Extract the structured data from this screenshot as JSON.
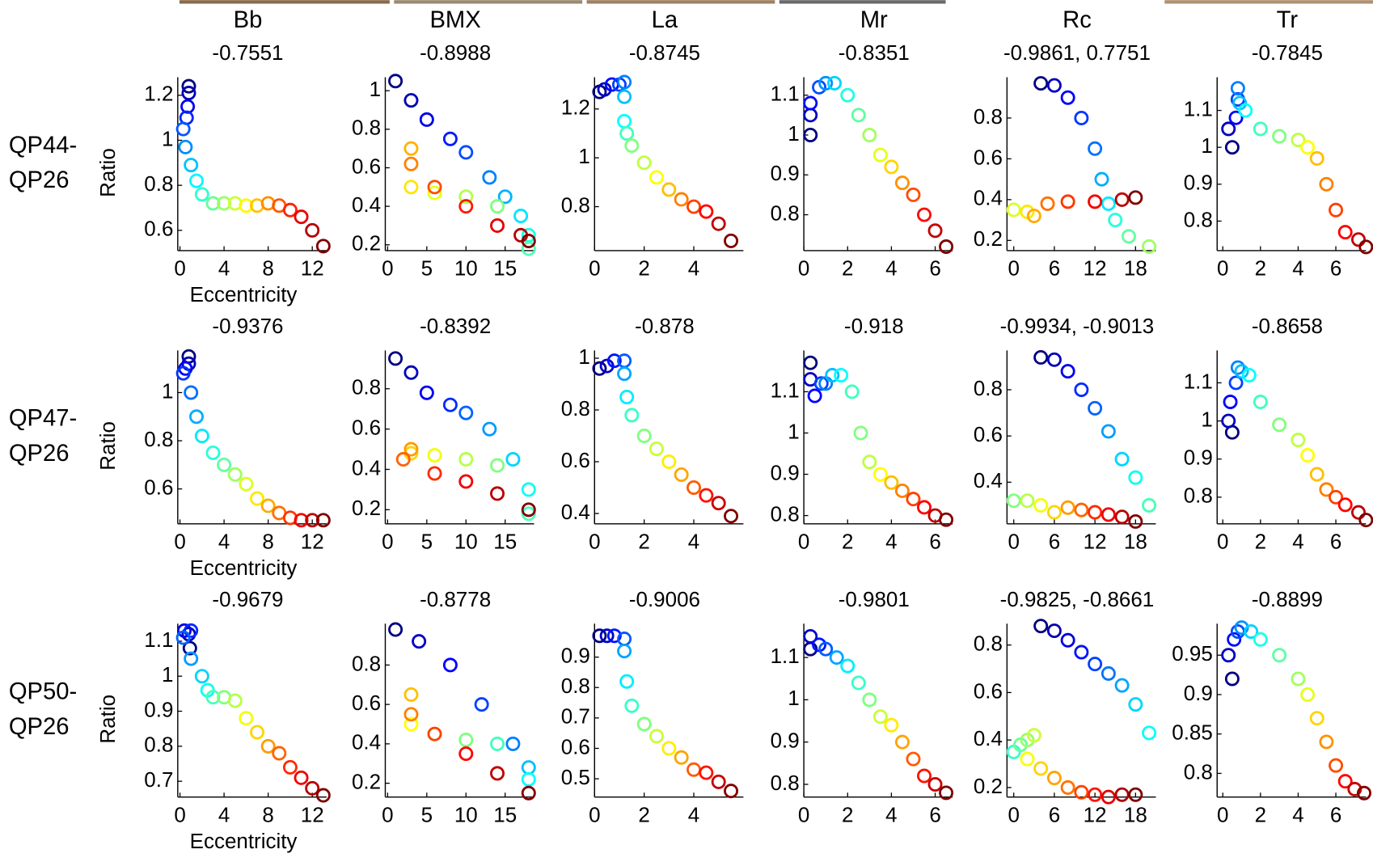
{
  "column_headers": [
    "Bb",
    "BMX",
    "La",
    "Mr",
    "Rc",
    "Tr"
  ],
  "row_labels": [
    [
      "QP44-",
      "QP26"
    ],
    [
      "QP47-",
      "QP26"
    ],
    [
      "QP50-",
      "QP26"
    ]
  ],
  "axis_labels": {
    "x": "Eccentricity",
    "y": "Ratio"
  },
  "colormap": "jet",
  "chart_data": [
    {
      "type": "scatter",
      "title": "-0.7551",
      "x": [
        0.8,
        0.8,
        0.7,
        0.6,
        0.3,
        0.5,
        1,
        1.5,
        2,
        3,
        4,
        5,
        6,
        7,
        8,
        9,
        10,
        11,
        12,
        13
      ],
      "y": [
        1.24,
        1.21,
        1.15,
        1.1,
        1.05,
        0.97,
        0.89,
        0.82,
        0.76,
        0.72,
        0.72,
        0.72,
        0.71,
        0.71,
        0.72,
        0.71,
        0.69,
        0.66,
        0.6,
        0.53
      ],
      "xlim": [
        -0.2,
        13.3
      ],
      "ylim": [
        0.51,
        1.28
      ],
      "xticks": [
        0,
        4,
        8,
        12
      ],
      "yticks": [
        0.6,
        0.8,
        1,
        1.2
      ]
    },
    {
      "type": "scatter",
      "title": "-0.8988",
      "x": [
        1,
        3,
        5,
        8,
        10,
        13,
        15,
        17,
        18,
        18,
        14,
        10,
        6,
        3,
        3,
        3,
        6,
        10,
        14,
        17,
        18
      ],
      "y": [
        1.05,
        0.95,
        0.85,
        0.75,
        0.68,
        0.55,
        0.45,
        0.35,
        0.25,
        0.18,
        0.4,
        0.45,
        0.47,
        0.5,
        0.7,
        0.62,
        0.5,
        0.4,
        0.3,
        0.25,
        0.22
      ],
      "xlim": [
        -0.3,
        18.7
      ],
      "ylim": [
        0.17,
        1.07
      ],
      "xticks": [
        0,
        5,
        10,
        15
      ],
      "yticks": [
        0.2,
        0.4,
        0.6,
        0.8,
        1
      ]
    },
    {
      "type": "scatter",
      "title": "-0.8745",
      "x": [
        0.2,
        0.4,
        0.7,
        1,
        1.2,
        1.2,
        1.2,
        1.3,
        1.5,
        2,
        2.5,
        3,
        3.5,
        4,
        4.5,
        5,
        5.5
      ],
      "y": [
        1.27,
        1.28,
        1.3,
        1.3,
        1.31,
        1.25,
        1.15,
        1.1,
        1.05,
        0.98,
        0.92,
        0.87,
        0.83,
        0.8,
        0.78,
        0.73,
        0.66
      ],
      "xlim": [
        0,
        6
      ],
      "ylim": [
        0.62,
        1.33
      ],
      "xticks": [
        0,
        2,
        4
      ],
      "yticks": [
        0.8,
        1,
        1.2
      ]
    },
    {
      "type": "scatter",
      "title": "-0.8351",
      "x": [
        0.3,
        0.3,
        0.3,
        0.7,
        1,
        1.4,
        2,
        2.5,
        3,
        3.5,
        4,
        4.5,
        5,
        5.5,
        6,
        6.5
      ],
      "y": [
        1.0,
        1.05,
        1.08,
        1.12,
        1.13,
        1.13,
        1.1,
        1.05,
        1.0,
        0.95,
        0.92,
        0.88,
        0.85,
        0.8,
        0.76,
        0.72
      ],
      "xlim": [
        0,
        6.8
      ],
      "ylim": [
        0.71,
        1.145
      ],
      "xticks": [
        0,
        2,
        4,
        6
      ],
      "yticks": [
        0.8,
        0.9,
        1,
        1.1
      ]
    },
    {
      "type": "scatter",
      "title": "-0.9861, 0.7751",
      "x": [
        4,
        6,
        8,
        10,
        12,
        13,
        14,
        15,
        17,
        20,
        0,
        2,
        3,
        5,
        8,
        12,
        16,
        18
      ],
      "y": [
        0.97,
        0.96,
        0.9,
        0.8,
        0.65,
        0.5,
        0.38,
        0.3,
        0.22,
        0.17,
        0.35,
        0.34,
        0.32,
        0.38,
        0.39,
        0.39,
        0.4,
        0.41
      ],
      "xlim": [
        -1,
        21
      ],
      "ylim": [
        0.15,
        1.0
      ],
      "xticks": [
        0,
        6,
        12,
        18
      ],
      "yticks": [
        0.2,
        0.4,
        0.6,
        0.8
      ]
    },
    {
      "type": "scatter",
      "title": "-0.7845",
      "x": [
        0.5,
        0.3,
        0.7,
        0.8,
        0.8,
        0.9,
        1.2,
        2,
        3,
        4,
        4.5,
        5,
        5.5,
        6,
        6.5,
        7.2,
        7.6
      ],
      "y": [
        1.0,
        1.05,
        1.08,
        1.13,
        1.16,
        1.12,
        1.1,
        1.05,
        1.03,
        1.02,
        1.0,
        0.97,
        0.9,
        0.83,
        0.77,
        0.75,
        0.73
      ],
      "xlim": [
        -0.3,
        7.6
      ],
      "ylim": [
        0.72,
        1.19
      ],
      "xticks": [
        0,
        2,
        4,
        6
      ],
      "yticks": [
        0.8,
        0.9,
        1,
        1.1
      ]
    },
    {
      "type": "scatter",
      "title": "-0.9376",
      "x": [
        0.8,
        0.8,
        0.5,
        0.3,
        1,
        1.5,
        2,
        3,
        4,
        5,
        6,
        7,
        8,
        9,
        10,
        11,
        12,
        13
      ],
      "y": [
        1.15,
        1.12,
        1.1,
        1.08,
        1.0,
        0.9,
        0.82,
        0.75,
        0.7,
        0.66,
        0.62,
        0.56,
        0.53,
        0.5,
        0.48,
        0.47,
        0.47,
        0.47
      ],
      "xlim": [
        -0.2,
        13.3
      ],
      "ylim": [
        0.455,
        1.175
      ],
      "xticks": [
        0,
        4,
        8,
        12
      ],
      "yticks": [
        0.6,
        0.8,
        1
      ]
    },
    {
      "type": "scatter",
      "title": "-0.8392",
      "x": [
        1,
        3,
        5,
        8,
        10,
        13,
        16,
        18,
        18,
        14,
        10,
        6,
        3,
        3,
        2,
        6,
        10,
        14,
        18
      ],
      "y": [
        0.95,
        0.88,
        0.78,
        0.72,
        0.68,
        0.6,
        0.45,
        0.3,
        0.18,
        0.42,
        0.45,
        0.47,
        0.48,
        0.5,
        0.45,
        0.38,
        0.34,
        0.28,
        0.2
      ],
      "xlim": [
        -0.3,
        18.7
      ],
      "ylim": [
        0.13,
        0.99
      ],
      "xticks": [
        0,
        5,
        10,
        15
      ],
      "yticks": [
        0.2,
        0.4,
        0.6,
        0.8
      ]
    },
    {
      "type": "scatter",
      "title": "-0.878",
      "x": [
        0.2,
        0.5,
        0.8,
        1.2,
        1.2,
        1.3,
        1.5,
        2,
        2.5,
        3,
        3.5,
        4,
        4.5,
        5,
        5.5
      ],
      "y": [
        0.96,
        0.97,
        0.99,
        0.99,
        0.94,
        0.85,
        0.78,
        0.7,
        0.65,
        0.6,
        0.55,
        0.5,
        0.47,
        0.44,
        0.39
      ],
      "xlim": [
        0,
        6
      ],
      "ylim": [
        0.36,
        1.03
      ],
      "xticks": [
        0,
        2,
        4
      ],
      "yticks": [
        0.4,
        0.6,
        0.8,
        1
      ]
    },
    {
      "type": "scatter",
      "title": "-0.918",
      "x": [
        0.3,
        0.3,
        0.5,
        0.8,
        1,
        1.3,
        1.7,
        2.2,
        2.6,
        3,
        3.5,
        4,
        4.5,
        5,
        5.5,
        6,
        6.5
      ],
      "y": [
        1.17,
        1.13,
        1.09,
        1.12,
        1.12,
        1.14,
        1.14,
        1.1,
        1.0,
        0.93,
        0.9,
        0.88,
        0.86,
        0.84,
        0.82,
        0.8,
        0.79
      ],
      "xlim": [
        0,
        6.8
      ],
      "ylim": [
        0.78,
        1.2
      ],
      "xticks": [
        0,
        2,
        4,
        6
      ],
      "yticks": [
        0.8,
        0.9,
        1,
        1.1
      ]
    },
    {
      "type": "scatter",
      "title": "-0.9934, -0.9013",
      "x": [
        4,
        6,
        8,
        10,
        12,
        14,
        16,
        18,
        20,
        0,
        2,
        4,
        6,
        8,
        10,
        12,
        14,
        16,
        18
      ],
      "y": [
        0.94,
        0.93,
        0.88,
        0.8,
        0.72,
        0.62,
        0.5,
        0.42,
        0.3,
        0.32,
        0.32,
        0.3,
        0.27,
        0.29,
        0.28,
        0.27,
        0.26,
        0.25,
        0.23
      ],
      "xlim": [
        -1,
        21
      ],
      "ylim": [
        0.22,
        0.97
      ],
      "xticks": [
        0,
        6,
        12,
        18
      ],
      "yticks": [
        0.4,
        0.6,
        0.8
      ]
    },
    {
      "type": "scatter",
      "title": "-0.8658",
      "x": [
        0.5,
        0.3,
        0.4,
        0.7,
        0.8,
        1,
        1.4,
        2,
        3,
        4,
        4.5,
        5,
        5.5,
        6,
        6.5,
        7.2,
        7.6
      ],
      "y": [
        0.97,
        1.0,
        1.05,
        1.1,
        1.14,
        1.13,
        1.12,
        1.05,
        0.99,
        0.95,
        0.91,
        0.86,
        0.82,
        0.8,
        0.78,
        0.76,
        0.74
      ],
      "xlim": [
        -0.3,
        7.6
      ],
      "ylim": [
        0.73,
        1.185
      ],
      "xticks": [
        0,
        2,
        4,
        6
      ],
      "yticks": [
        0.8,
        0.9,
        1,
        1.1
      ]
    },
    {
      "type": "scatter",
      "title": "-0.9679",
      "x": [
        0.9,
        0.8,
        0.4,
        1,
        0.3,
        1,
        2,
        2.5,
        3,
        4,
        5,
        6,
        7,
        8,
        9,
        10,
        11,
        12,
        13
      ],
      "y": [
        1.08,
        1.12,
        1.13,
        1.13,
        1.11,
        1.05,
        1.0,
        0.96,
        0.94,
        0.94,
        0.93,
        0.88,
        0.84,
        0.8,
        0.78,
        0.74,
        0.71,
        0.68,
        0.66
      ],
      "xlim": [
        -0.2,
        13.3
      ],
      "ylim": [
        0.655,
        1.15
      ],
      "xticks": [
        0,
        4,
        8,
        12
      ],
      "yticks": [
        0.7,
        0.8,
        0.9,
        1,
        1.1
      ]
    },
    {
      "type": "scatter",
      "title": "-0.8778",
      "x": [
        1,
        4,
        8,
        12,
        16,
        18,
        18,
        14,
        10,
        6,
        3,
        3,
        3,
        6,
        10,
        14,
        18
      ],
      "y": [
        0.98,
        0.92,
        0.8,
        0.6,
        0.4,
        0.28,
        0.22,
        0.4,
        0.42,
        0.45,
        0.5,
        0.65,
        0.55,
        0.45,
        0.35,
        0.25,
        0.15
      ],
      "xlim": [
        -0.3,
        18.7
      ],
      "ylim": [
        0.13,
        1.01
      ],
      "xticks": [
        0,
        5,
        10,
        15
      ],
      "yticks": [
        0.2,
        0.4,
        0.6,
        0.8
      ]
    },
    {
      "type": "scatter",
      "title": "-0.9006",
      "x": [
        0.2,
        0.5,
        0.8,
        1.2,
        1.2,
        1.3,
        1.5,
        2,
        2.5,
        3,
        3.5,
        4,
        4.5,
        5,
        5.5
      ],
      "y": [
        0.97,
        0.97,
        0.97,
        0.96,
        0.92,
        0.82,
        0.74,
        0.68,
        0.64,
        0.6,
        0.57,
        0.53,
        0.52,
        0.49,
        0.46
      ],
      "xlim": [
        0,
        6
      ],
      "ylim": [
        0.44,
        1.01
      ],
      "xticks": [
        0,
        2,
        4
      ],
      "yticks": [
        0.5,
        0.6,
        0.7,
        0.8,
        0.9
      ]
    },
    {
      "type": "scatter",
      "title": "-0.9801",
      "x": [
        0.3,
        0.3,
        0.7,
        1,
        1.5,
        2,
        2.5,
        3,
        3.5,
        4,
        4.5,
        5,
        5.5,
        6,
        6.5
      ],
      "y": [
        1.12,
        1.15,
        1.13,
        1.12,
        1.1,
        1.08,
        1.04,
        1.0,
        0.96,
        0.94,
        0.9,
        0.86,
        0.82,
        0.8,
        0.78
      ],
      "xlim": [
        0,
        6.8
      ],
      "ylim": [
        0.77,
        1.18
      ],
      "xticks": [
        0,
        2,
        4,
        6
      ],
      "yticks": [
        0.8,
        0.9,
        1,
        1.1
      ]
    },
    {
      "type": "scatter",
      "title": "-0.9825, -0.8661",
      "x": [
        4,
        6,
        8,
        10,
        12,
        14,
        16,
        18,
        20,
        0,
        1,
        2,
        3,
        2,
        4,
        6,
        8,
        10,
        12,
        14,
        16,
        18
      ],
      "y": [
        0.88,
        0.86,
        0.82,
        0.77,
        0.72,
        0.68,
        0.63,
        0.55,
        0.43,
        0.35,
        0.38,
        0.4,
        0.42,
        0.32,
        0.28,
        0.24,
        0.2,
        0.18,
        0.17,
        0.16,
        0.17,
        0.17
      ],
      "xlim": [
        -1,
        21
      ],
      "ylim": [
        0.16,
        0.89
      ],
      "xticks": [
        0,
        6,
        12,
        18
      ],
      "yticks": [
        0.2,
        0.4,
        0.6,
        0.8
      ]
    },
    {
      "type": "scatter",
      "title": "-0.8899",
      "x": [
        0.5,
        0.3,
        0.6,
        0.8,
        1,
        1.5,
        2,
        3,
        4,
        4.5,
        5,
        5.5,
        6,
        6.5,
        7,
        7.5
      ],
      "y": [
        0.92,
        0.95,
        0.97,
        0.98,
        0.985,
        0.98,
        0.97,
        0.95,
        0.92,
        0.9,
        0.87,
        0.84,
        0.81,
        0.79,
        0.78,
        0.775
      ],
      "xlim": [
        -0.3,
        7.6
      ],
      "ylim": [
        0.77,
        0.99
      ],
      "xticks": [
        0,
        2,
        4,
        6
      ],
      "yticks": [
        0.8,
        0.85,
        0.9,
        0.95
      ]
    }
  ]
}
